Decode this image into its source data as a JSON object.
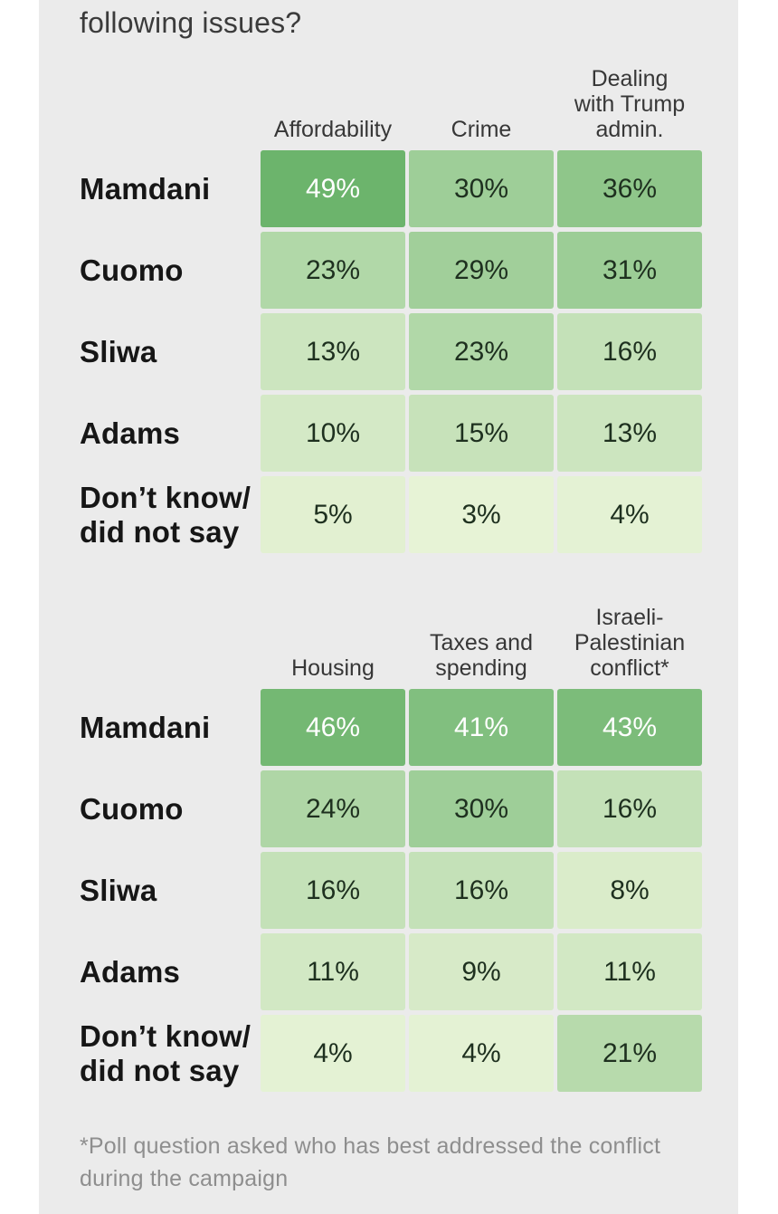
{
  "title": "following issues?",
  "footnote": "*Poll question asked who has best addressed the conflict\nduring the campaign",
  "colors": {
    "page_bg": "#ffffff",
    "panel_bg": "#ebebeb",
    "title_text": "#3b3b3b",
    "header_text": "#373737",
    "row_label_text": "#161616",
    "cell_text_dark": "#1e301f",
    "cell_text_light": "#ffffff",
    "footnote_text": "#8e8e8e"
  },
  "tables": [
    {
      "column_headers": [
        "Affordability",
        "Crime",
        "Dealing\nwith Trump\nadmin."
      ],
      "rows": [
        {
          "label": "Mamdani",
          "cells": [
            {
              "text": "49%",
              "bg": "#6cb46c",
              "fg": "#ffffff"
            },
            {
              "text": "30%",
              "bg": "#9ece98",
              "fg": "#1e301f"
            },
            {
              "text": "36%",
              "bg": "#8fc68a",
              "fg": "#1e301f"
            }
          ]
        },
        {
          "label": "Cuomo",
          "cells": [
            {
              "text": "23%",
              "bg": "#b1d8a8",
              "fg": "#1e301f"
            },
            {
              "text": "29%",
              "bg": "#a1cf9a",
              "fg": "#1e301f"
            },
            {
              "text": "31%",
              "bg": "#9ccd96",
              "fg": "#1e301f"
            }
          ]
        },
        {
          "label": "Sliwa",
          "cells": [
            {
              "text": "13%",
              "bg": "#cce5bf",
              "fg": "#1e301f"
            },
            {
              "text": "23%",
              "bg": "#b1d8a8",
              "fg": "#1e301f"
            },
            {
              "text": "16%",
              "bg": "#c4e1b8",
              "fg": "#1e301f"
            }
          ]
        },
        {
          "label": "Adams",
          "cells": [
            {
              "text": "10%",
              "bg": "#d4e9c6",
              "fg": "#1e301f"
            },
            {
              "text": "15%",
              "bg": "#c7e2ba",
              "fg": "#1e301f"
            },
            {
              "text": "13%",
              "bg": "#cce5bf",
              "fg": "#1e301f"
            }
          ]
        },
        {
          "label": "Don’t know/\ndid not say",
          "cells": [
            {
              "text": "5%",
              "bg": "#e2f0d1",
              "fg": "#1e301f"
            },
            {
              "text": "3%",
              "bg": "#e7f3d6",
              "fg": "#1e301f"
            },
            {
              "text": "4%",
              "bg": "#e4f2d4",
              "fg": "#1e301f"
            }
          ]
        }
      ]
    },
    {
      "column_headers": [
        "Housing",
        "Taxes and\nspending",
        "Israeli-\nPalestinian\nconflict*"
      ],
      "rows": [
        {
          "label": "Mamdani",
          "cells": [
            {
              "text": "46%",
              "bg": "#74b873",
              "fg": "#ffffff"
            },
            {
              "text": "41%",
              "bg": "#81bf7f",
              "fg": "#ffffff"
            },
            {
              "text": "43%",
              "bg": "#7cbc7a",
              "fg": "#ffffff"
            }
          ]
        },
        {
          "label": "Cuomo",
          "cells": [
            {
              "text": "24%",
              "bg": "#afd6a6",
              "fg": "#1e301f"
            },
            {
              "text": "30%",
              "bg": "#9ece98",
              "fg": "#1e301f"
            },
            {
              "text": "16%",
              "bg": "#c4e1b8",
              "fg": "#1e301f"
            }
          ]
        },
        {
          "label": "Sliwa",
          "cells": [
            {
              "text": "16%",
              "bg": "#c4e1b8",
              "fg": "#1e301f"
            },
            {
              "text": "16%",
              "bg": "#c4e1b8",
              "fg": "#1e301f"
            },
            {
              "text": "8%",
              "bg": "#daecca",
              "fg": "#1e301f"
            }
          ]
        },
        {
          "label": "Adams",
          "cells": [
            {
              "text": "11%",
              "bg": "#d2e8c4",
              "fg": "#1e301f"
            },
            {
              "text": "9%",
              "bg": "#d7eac8",
              "fg": "#1e301f"
            },
            {
              "text": "11%",
              "bg": "#d2e8c4",
              "fg": "#1e301f"
            }
          ]
        },
        {
          "label": "Don’t know/\ndid not say",
          "cells": [
            {
              "text": "4%",
              "bg": "#e4f2d4",
              "fg": "#1e301f"
            },
            {
              "text": "4%",
              "bg": "#e4f2d4",
              "fg": "#1e301f"
            },
            {
              "text": "21%",
              "bg": "#b7daac",
              "fg": "#1e301f"
            }
          ]
        }
      ]
    }
  ],
  "chart_data": {
    "type": "heatmap",
    "title": "following issues?",
    "footnote": "*Poll question asked who has best addressed the conflict during the campaign",
    "rows": [
      "Mamdani",
      "Cuomo",
      "Sliwa",
      "Adams",
      "Don’t know/did not say"
    ],
    "panels": [
      {
        "columns": [
          "Affordability",
          "Crime",
          "Dealing with Trump admin."
        ],
        "values_pct": [
          [
            49,
            30,
            36
          ],
          [
            23,
            29,
            31
          ],
          [
            13,
            23,
            16
          ],
          [
            10,
            15,
            13
          ],
          [
            5,
            3,
            4
          ]
        ]
      },
      {
        "columns": [
          "Housing",
          "Taxes and spending",
          "Israeli-Palestinian conflict*"
        ],
        "values_pct": [
          [
            46,
            41,
            43
          ],
          [
            24,
            30,
            16
          ],
          [
            16,
            16,
            8
          ],
          [
            11,
            9,
            11
          ],
          [
            4,
            4,
            21
          ]
        ]
      }
    ],
    "color_scale": {
      "min_value": 3,
      "max_value": 49,
      "min_color": "#e7f3d6",
      "max_color": "#6cb46c",
      "white_text_min": 41
    },
    "legend": "off",
    "grid": "off"
  }
}
